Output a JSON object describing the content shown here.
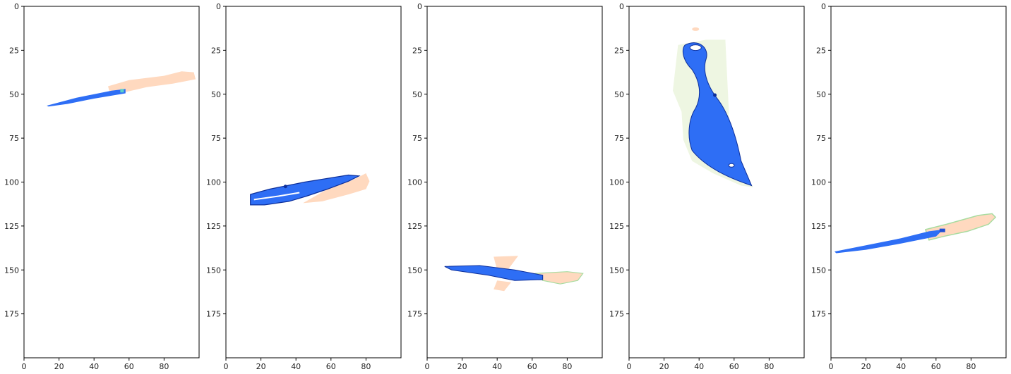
{
  "figure": {
    "panel_count": 5,
    "x_ticks": [
      "0",
      "20",
      "40",
      "60",
      "80"
    ],
    "y_ticks": [
      "0",
      "25",
      "50",
      "75",
      "100",
      "125",
      "150",
      "175"
    ],
    "x_range": [
      0,
      100
    ],
    "y_range": [
      200,
      0
    ],
    "colors": {
      "blade": "#2e6ef5",
      "blade_dark": "#1d4fd6",
      "blade_edge": "#0d2f9a",
      "handle": "#ffd9bf",
      "outline_green": "#a8dca0",
      "pale_green": "#eef6e2"
    }
  },
  "panels": [
    {
      "object": "knife"
    },
    {
      "object": "folding-knife"
    },
    {
      "object": "dagger"
    },
    {
      "object": "karambit-knife"
    },
    {
      "object": "knife"
    }
  ]
}
